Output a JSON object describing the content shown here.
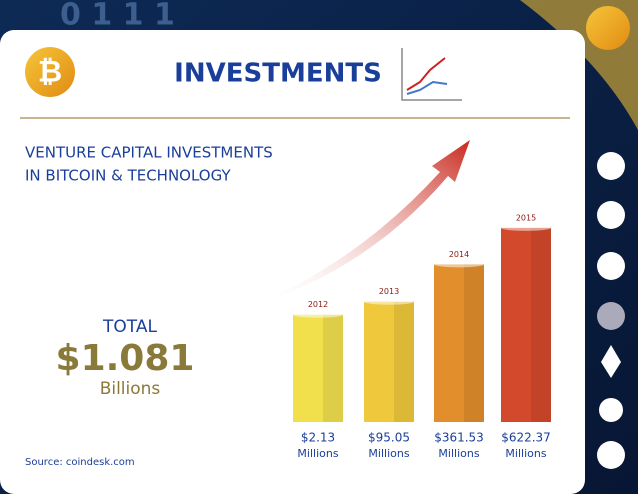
{
  "header": {
    "title": "INVESTMENTS"
  },
  "subtitle": [
    "VENTURE CAPITAL INVESTMENTS",
    "IN BITCOIN & TECHNOLOGY"
  ],
  "total": {
    "label": "TOTAL",
    "value": "$1.081",
    "unit": "Billions"
  },
  "source": "Source: coindesk.com",
  "chart_data": {
    "type": "bar",
    "categories": [
      "2012",
      "2013",
      "2014",
      "2015"
    ],
    "values": [
      2.13,
      95.05,
      361.53,
      622.37
    ],
    "value_labels": [
      "$2.13",
      "$95.05",
      "$361.53",
      "$622.37"
    ],
    "unit_label": "Millions",
    "colors": [
      "#f1df4c",
      "#efc83c",
      "#e28e2c",
      "#d3492b"
    ]
  }
}
